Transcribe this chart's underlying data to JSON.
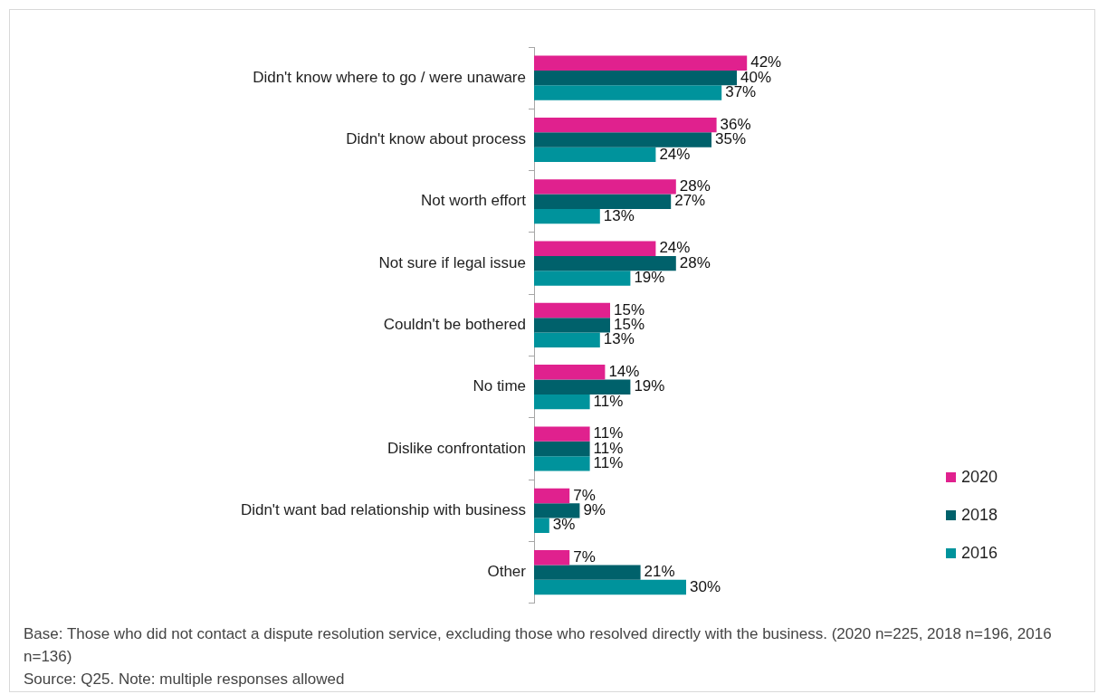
{
  "chart_data": {
    "type": "bar",
    "orientation": "horizontal",
    "categories": [
      "Didn't know where to go / were unaware",
      "Didn't know about process",
      "Not worth effort",
      "Not sure if legal issue",
      "Couldn't be bothered",
      "No time",
      "Dislike confrontation",
      "Didn't want bad relationship with business",
      "Other"
    ],
    "series": [
      {
        "name": "2020",
        "color": "#e0218e",
        "values": [
          42,
          36,
          28,
          24,
          15,
          14,
          11,
          7,
          7
        ],
        "value_labels": [
          "42%",
          "36%",
          "28%",
          "24%",
          "15%",
          "14%",
          "11%",
          "7%",
          "7%"
        ]
      },
      {
        "name": "2018",
        "color": "#00616b",
        "values": [
          40,
          35,
          27,
          28,
          15,
          19,
          11,
          9,
          21
        ],
        "value_labels": [
          "40%",
          "35%",
          "27%",
          "28%",
          "15%",
          "19%",
          "11%",
          "9%",
          "21%"
        ]
      },
      {
        "name": "2016",
        "color": "#00939c",
        "values": [
          37,
          24,
          13,
          19,
          13,
          11,
          11,
          3,
          30
        ],
        "value_labels": [
          "37%",
          "24%",
          "13%",
          "19%",
          "13%",
          "11%",
          "11%",
          "3%",
          "30%"
        ]
      }
    ],
    "tick_labels": "y",
    "grid": false,
    "legend": "right",
    "annotations": [
      "Base: Those who did not contact a dispute resolution service, excluding those who resolved directly with the business. (2020 n=225, 2018 n=196, 2016 n=136)",
      "Source: Q25.  Note: multiple responses allowed"
    ]
  }
}
